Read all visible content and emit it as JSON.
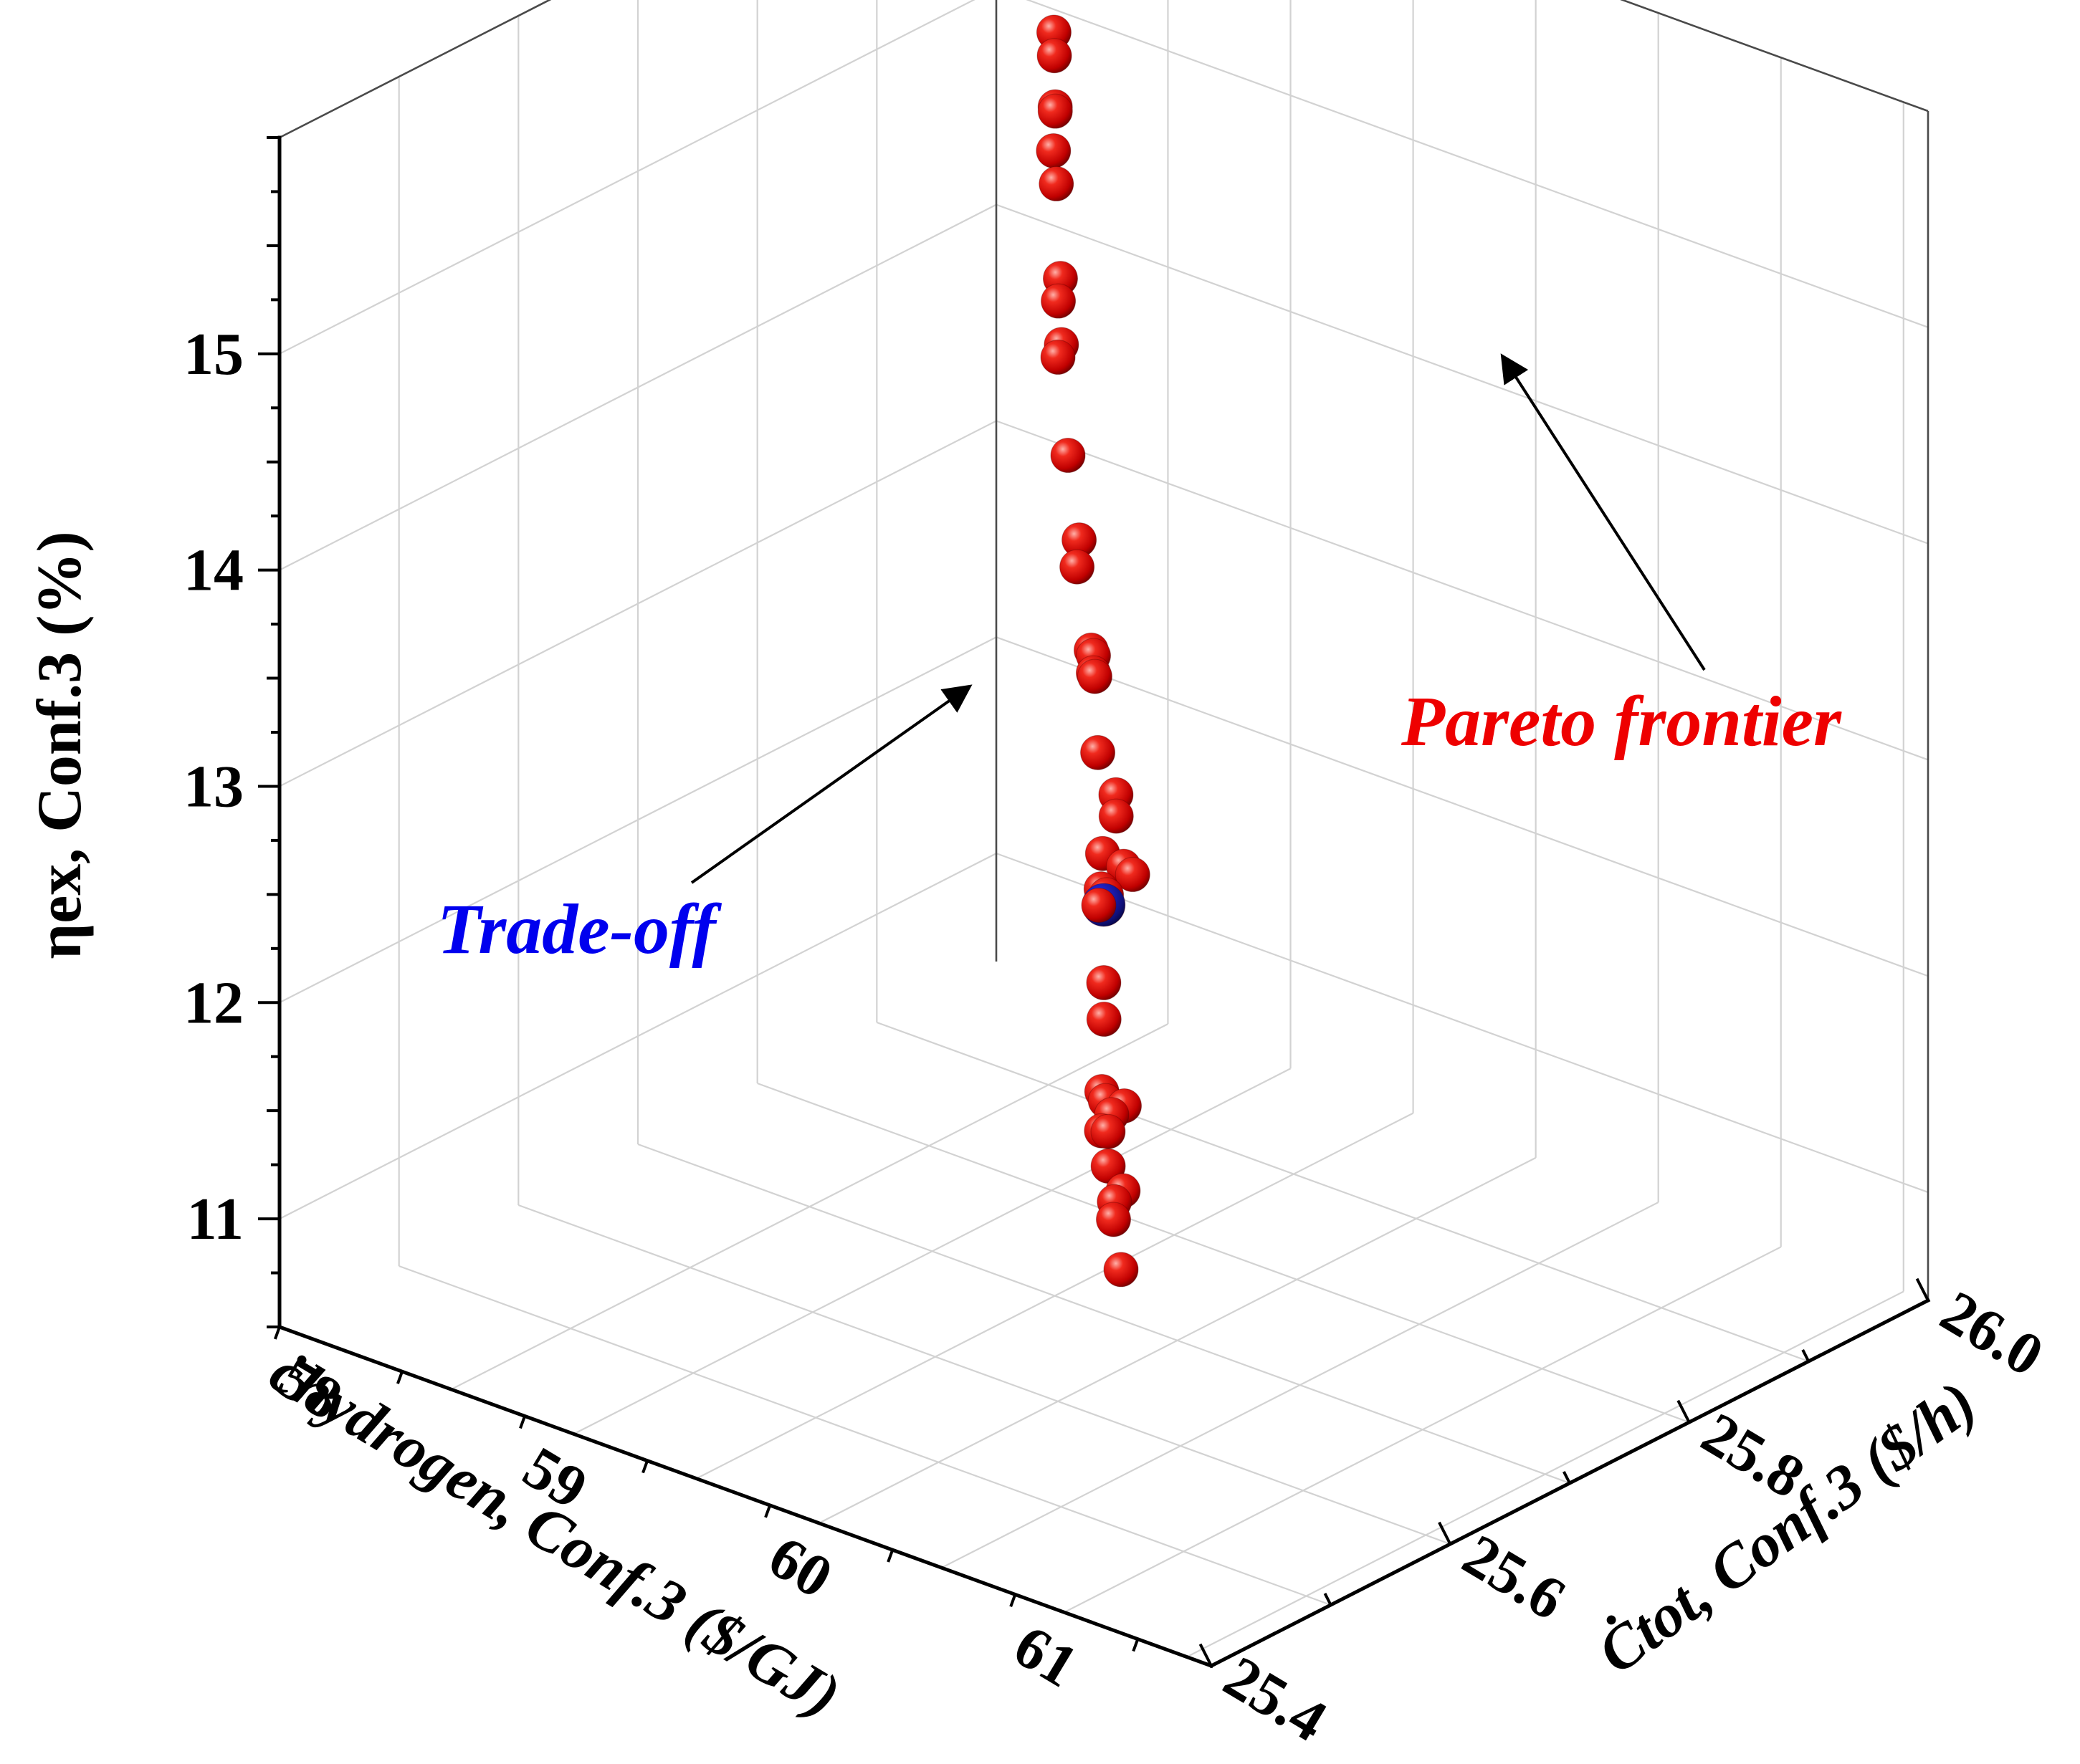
{
  "chart_data": {
    "type": "scatter",
    "projection": "3d",
    "grid": true,
    "axes": {
      "x": {
        "label": "ċhydrogen, Conf.3 ($/GJ)",
        "range": [
          57.8,
          61.6
        ],
        "ticks": [
          58,
          59,
          60,
          61
        ],
        "tick_labels": [
          "58",
          "59",
          "60",
          "61"
        ]
      },
      "y": {
        "label": "Ċtot, Conf.3 ($/h)",
        "range": [
          25.4,
          26.0
        ],
        "ticks": [
          25.4,
          25.6,
          25.8,
          26.0
        ],
        "tick_labels": [
          "25.4",
          "25.6",
          "25.8",
          "26.0"
        ]
      },
      "z": {
        "label": "ηex, Conf.3 (%)",
        "range": [
          10.5,
          16.0
        ],
        "ticks": [
          11,
          12,
          13,
          14,
          15
        ],
        "tick_labels": [
          "11",
          "12",
          "13",
          "14",
          "15"
        ]
      }
    },
    "series": [
      {
        "color": "#d40000",
        "points": [
          [
            61.11,
            25.425,
            12.06
          ],
          [
            61.05,
            25.431,
            12.25
          ],
          [
            61.01,
            25.44,
            12.29
          ],
          [
            61.06,
            25.437,
            12.37
          ],
          [
            60.97,
            25.443,
            12.43
          ],
          [
            60.95,
            25.447,
            12.57
          ],
          [
            60.86,
            25.46,
            12.5
          ],
          [
            60.95,
            25.45,
            12.64
          ],
          [
            60.9,
            25.455,
            12.67
          ],
          [
            60.91,
            25.45,
            12.73
          ],
          [
            61.05,
            25.44,
            12.75
          ],
          [
            60.87,
            25.46,
            13.02
          ],
          [
            60.83,
            25.468,
            13.15
          ],
          [
            60.8,
            25.47,
            13.49
          ],
          [
            60.8,
            25.472,
            13.56
          ],
          [
            60.87,
            25.462,
            13.59
          ],
          [
            60.84,
            25.465,
            13.76
          ],
          [
            61.06,
            25.445,
            13.81
          ],
          [
            60.95,
            25.46,
            13.76
          ],
          [
            60.91,
            25.462,
            13.97
          ],
          [
            60.87,
            25.47,
            14.03
          ],
          [
            60.64,
            25.502,
            14.04
          ],
          [
            60.55,
            25.518,
            14.31
          ],
          [
            60.52,
            25.523,
            14.38
          ],
          [
            60.51,
            25.525,
            14.29
          ],
          [
            60.55,
            25.515,
            14.44
          ],
          [
            60.38,
            25.538,
            14.69
          ],
          [
            60.34,
            25.548,
            14.77
          ],
          [
            60.08,
            25.592,
            14.93
          ],
          [
            59.82,
            25.637,
            15.15
          ],
          [
            59.8,
            25.644,
            15.18
          ],
          [
            59.69,
            25.664,
            15.28
          ],
          [
            59.64,
            25.676,
            15.33
          ],
          [
            59.37,
            25.728,
            15.51
          ],
          [
            59.3,
            25.74,
            15.6
          ],
          [
            59.2,
            25.762,
            15.68
          ],
          [
            59.19,
            25.764,
            15.69
          ],
          [
            59.06,
            25.79,
            15.8
          ],
          [
            58.99,
            25.804,
            15.84
          ]
        ]
      }
    ],
    "highlight": {
      "label": "Trade-off",
      "color": "#1010b0",
      "point": [
        60.82,
        25.47,
        13.5
      ]
    },
    "annotations": [
      {
        "text": "Trade-off",
        "color": "#0000ee"
      },
      {
        "text": "Pareto frontier",
        "color": "#ee0000"
      }
    ]
  }
}
